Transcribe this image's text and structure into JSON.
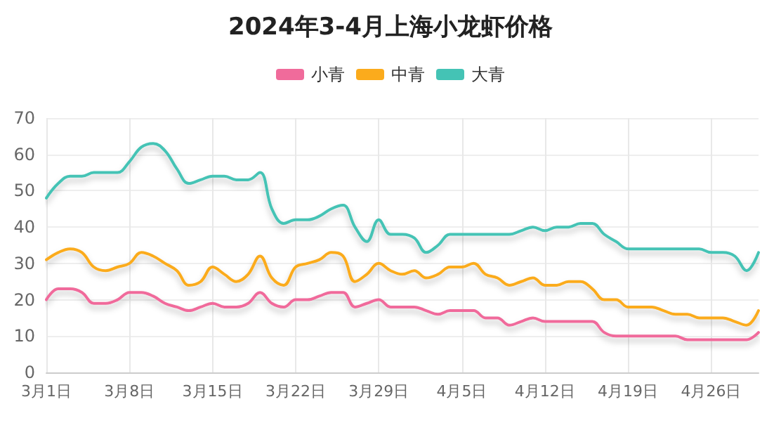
{
  "chart_data": {
    "type": "line",
    "title": "2024年3-4月上海小龙虾价格",
    "categories": [
      "3月1日",
      null,
      null,
      null,
      null,
      null,
      null,
      "3月8日",
      null,
      null,
      null,
      null,
      null,
      null,
      "3月15日",
      null,
      null,
      null,
      null,
      null,
      null,
      "3月22日",
      null,
      null,
      null,
      null,
      null,
      null,
      "3月29日",
      null,
      null,
      null,
      null,
      null,
      null,
      "4月5日",
      null,
      null,
      null,
      null,
      null,
      null,
      "4月12日",
      null,
      null,
      null,
      null,
      null,
      null,
      "4月19日",
      null,
      null,
      null,
      null,
      null,
      null,
      "4月26日",
      null,
      null,
      null,
      null
    ],
    "series": [
      {
        "name": "小青",
        "color": "#f06b9b",
        "values": [
          20,
          23,
          23,
          22,
          19,
          19,
          20,
          22,
          22,
          21,
          19,
          18,
          17,
          18,
          19,
          18,
          18,
          19,
          22,
          19,
          18,
          20,
          20,
          21,
          22,
          22,
          18,
          19,
          20,
          18,
          18,
          18,
          17,
          16,
          17,
          17,
          17,
          15,
          15,
          13,
          14,
          15,
          14,
          14,
          14,
          14,
          14,
          11,
          10,
          10,
          10,
          10,
          10,
          10,
          9,
          9,
          9,
          9,
          9,
          9,
          11
        ]
      },
      {
        "name": "中青",
        "color": "#fbab1c",
        "values": [
          31,
          33,
          34,
          33,
          29,
          28,
          29,
          30,
          33,
          32,
          30,
          28,
          24,
          25,
          29,
          27,
          25,
          27,
          32,
          26,
          24,
          29,
          30,
          31,
          33,
          32,
          25,
          27,
          30,
          28,
          27,
          28,
          26,
          27,
          29,
          29,
          30,
          27,
          26,
          24,
          25,
          26,
          24,
          24,
          25,
          25,
          23,
          20,
          20,
          18,
          18,
          18,
          17,
          16,
          16,
          15,
          15,
          15,
          14,
          13,
          17
        ]
      },
      {
        "name": "大青",
        "color": "#44c3b5",
        "values": [
          48,
          52,
          54,
          54,
          55,
          55,
          55,
          58,
          62,
          63,
          61,
          56,
          52,
          53,
          54,
          54,
          53,
          53,
          55,
          45,
          41,
          42,
          42,
          43,
          45,
          46,
          40,
          36,
          42,
          38,
          38,
          37,
          33,
          35,
          38,
          38,
          38,
          38,
          38,
          38,
          39,
          40,
          39,
          40,
          40,
          41,
          41,
          38,
          36,
          34,
          34,
          34,
          34,
          34,
          34,
          34,
          33,
          33,
          32,
          28,
          33
        ]
      }
    ],
    "ylim": [
      0,
      70
    ],
    "yticks": [
      0,
      10,
      20,
      30,
      40,
      50,
      60,
      70
    ],
    "grid": true,
    "legend": "top",
    "marker": "none",
    "line_style": "solid"
  }
}
